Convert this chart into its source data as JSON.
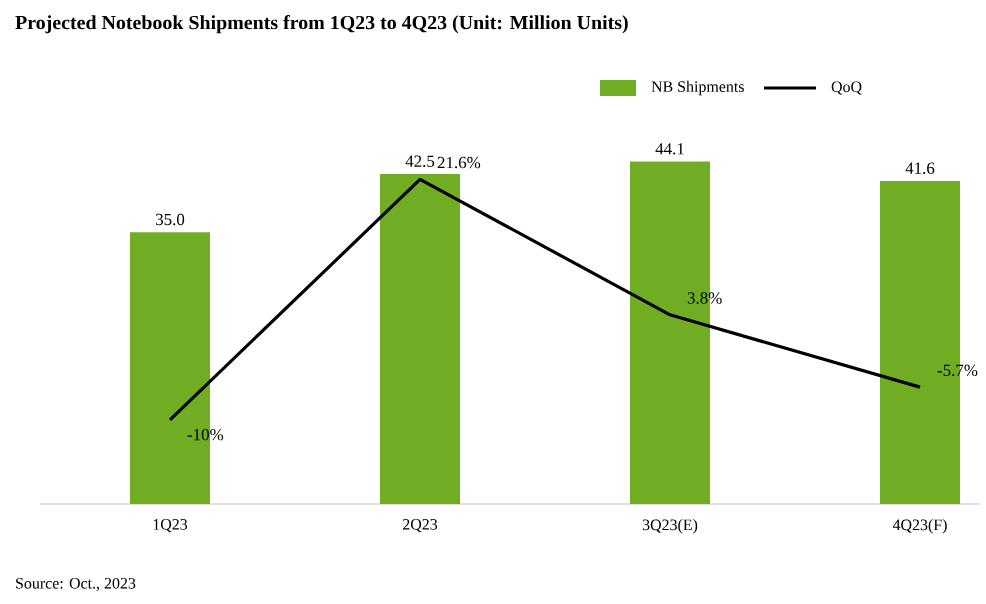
{
  "chart_data": {
    "type": "bar",
    "title": "Projected Notebook Shipments from 1Q23 to 4Q23 (Unit: Million Units)",
    "categories": [
      "1Q23",
      "2Q23",
      "3Q23(E)",
      "4Q23(F)"
    ],
    "series": [
      {
        "name": "NB Shipments",
        "color": "#70ad22",
        "values": [
          35.0,
          42.5,
          44.1,
          41.6
        ],
        "value_labels": [
          "35.0",
          "42.5",
          "44.1",
          "41.6"
        ]
      },
      {
        "name": "QoQ",
        "type": "line",
        "axis": "y2",
        "color": "#000000",
        "values": [
          -10,
          21.6,
          3.8,
          -5.7
        ],
        "value_labels": [
          "-10%",
          "21.6%",
          "3.8%",
          "-5.7%"
        ]
      }
    ],
    "tick_labels": "x",
    "legend": "top right",
    "marker": "none",
    "line_style": "solid",
    "annotations": [
      "Source: Oct., 2023"
    ]
  }
}
